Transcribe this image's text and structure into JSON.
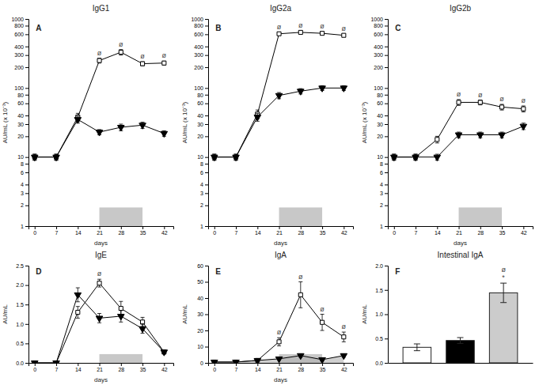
{
  "chart_data": [
    {
      "type": "line",
      "title": "IgG1",
      "label": "A",
      "xlabel": "days",
      "ylabel": "AU/mL (x 10⁻³)",
      "log": "y",
      "x": [
        0,
        7,
        14,
        21,
        28,
        35,
        42
      ],
      "xlim": [
        -2,
        45
      ],
      "xticks": [
        0,
        7,
        14,
        21,
        28,
        35,
        42
      ],
      "ylim": [
        1,
        1000
      ],
      "yticks": [
        1,
        2,
        3,
        4,
        6,
        8,
        10,
        20,
        30,
        40,
        60,
        80,
        100,
        200,
        300,
        400,
        600,
        800,
        1000
      ],
      "band": [
        21,
        35
      ],
      "series": [
        {
          "color": "black",
          "marker": "square-open",
          "values": [
            10,
            10,
            38,
            250,
            330,
            225,
            230
          ],
          "errors": [
            1,
            1,
            5,
            20,
            30,
            15,
            15
          ]
        },
        {
          "color": "black",
          "marker": "triangle-down",
          "values": [
            10,
            10,
            35,
            23,
            27,
            29,
            22
          ],
          "errors": [
            1,
            1,
            4,
            2,
            3,
            3,
            2
          ]
        }
      ],
      "annotations": [
        {
          "text": "ø",
          "x": 21
        },
        {
          "text": "ø",
          "x": 28
        },
        {
          "text": "ø",
          "x": 35
        },
        {
          "text": "ø",
          "x": 42
        }
      ]
    },
    {
      "type": "line",
      "title": "IgG2a",
      "label": "B",
      "xlabel": "days",
      "ylabel": "AU/mL (x 10⁻³)",
      "log": "y",
      "x": [
        0,
        7,
        14,
        21,
        28,
        35,
        42
      ],
      "xlim": [
        -2,
        45
      ],
      "xticks": [
        0,
        7,
        14,
        21,
        28,
        35,
        42
      ],
      "ylim": [
        1,
        1000
      ],
      "yticks": [
        1,
        2,
        3,
        4,
        6,
        8,
        10,
        20,
        30,
        40,
        60,
        80,
        100,
        200,
        300,
        400,
        600,
        800,
        1000
      ],
      "band": [
        21,
        35
      ],
      "series": [
        {
          "color": "black",
          "marker": "square-open",
          "values": [
            10,
            10,
            42,
            610,
            640,
            620,
            580
          ],
          "errors": [
            1,
            1,
            6,
            30,
            30,
            30,
            30
          ]
        },
        {
          "color": "black",
          "marker": "triangle-down",
          "values": [
            10,
            10,
            38,
            78,
            90,
            100,
            100
          ],
          "errors": [
            1,
            1,
            5,
            8,
            8,
            8,
            8
          ]
        }
      ],
      "annotations": [
        {
          "text": "ø",
          "x": 21
        },
        {
          "text": "ø",
          "x": 28
        },
        {
          "text": "ø",
          "x": 35
        },
        {
          "text": "ø",
          "x": 42
        }
      ]
    },
    {
      "type": "line",
      "title": "IgG2b",
      "label": "C",
      "xlabel": "days",
      "ylabel": "AU/mL (x 10⁻³)",
      "log": "y",
      "x": [
        0,
        7,
        14,
        21,
        28,
        35,
        42
      ],
      "xlim": [
        -2,
        45
      ],
      "xticks": [
        0,
        7,
        14,
        21,
        28,
        35,
        42
      ],
      "ylim": [
        1,
        1000
      ],
      "yticks": [
        1,
        2,
        3,
        4,
        6,
        8,
        10,
        20,
        30,
        40,
        60,
        80,
        100,
        200,
        300,
        400,
        600,
        800,
        1000
      ],
      "band": [
        21,
        35
      ],
      "series": [
        {
          "color": "black",
          "marker": "square-open",
          "values": [
            10,
            10,
            18,
            62,
            62,
            53,
            50
          ],
          "errors": [
            1,
            1,
            2,
            6,
            5,
            5,
            5
          ]
        },
        {
          "color": "black",
          "marker": "triangle-down",
          "values": [
            10,
            10,
            10,
            21,
            21,
            21,
            28
          ],
          "errors": [
            1,
            1,
            1,
            2,
            2,
            2,
            3
          ]
        }
      ],
      "annotations": [
        {
          "text": "ø",
          "x": 21
        },
        {
          "text": "ø",
          "x": 28
        },
        {
          "text": "ø",
          "x": 35
        },
        {
          "text": "ø",
          "x": 42
        }
      ]
    },
    {
      "type": "line",
      "title": "IgE",
      "label": "D",
      "xlabel": "days",
      "ylabel": "AU/mL",
      "x": [
        0,
        7,
        14,
        21,
        28,
        35,
        42
      ],
      "xlim": [
        -2,
        45
      ],
      "xticks": [
        0,
        7,
        14,
        21,
        28,
        35,
        42
      ],
      "ylim": [
        0,
        2.5
      ],
      "yticks": [
        {
          "value": 0,
          "label": "0.0"
        },
        0.5,
        {
          "value": 1,
          "label": "1.0"
        },
        1.5,
        {
          "value": 2,
          "label": "2.0"
        },
        2.5
      ],
      "band": [
        21,
        35
      ],
      "series": [
        {
          "color": "black",
          "marker": "square-open",
          "values": [
            0.0,
            0.0,
            1.3,
            2.05,
            1.4,
            1.05,
            0.28
          ],
          "errors": [
            0,
            0,
            0.15,
            0.1,
            0.18,
            0.12,
            0.05
          ]
        },
        {
          "color": "black",
          "marker": "triangle-down",
          "values": [
            0.0,
            0.0,
            1.75,
            1.15,
            1.2,
            0.88,
            0.28
          ],
          "errors": [
            0,
            0,
            0.18,
            0.12,
            0.15,
            0.12,
            0.04
          ]
        }
      ],
      "annotations": [
        {
          "text": "ø",
          "x": 21
        }
      ]
    },
    {
      "type": "line",
      "title": "IgA",
      "label": "E",
      "xlabel": "days",
      "ylabel": "AU/mL",
      "x": [
        0,
        7,
        14,
        21,
        28,
        35,
        42
      ],
      "xlim": [
        -2,
        45
      ],
      "xticks": [
        0,
        7,
        14,
        21,
        28,
        35,
        42
      ],
      "ylim": [
        0,
        60
      ],
      "yticks": [
        0,
        10,
        20,
        30,
        40,
        50,
        60
      ],
      "band": [
        21,
        35
      ],
      "series": [
        {
          "color": "black",
          "marker": "square-open",
          "values": [
            0.5,
            0.5,
            1.5,
            13.0,
            42.0,
            25.0,
            16.0
          ],
          "errors": [
            0.3,
            0.3,
            0.5,
            2.5,
            8.0,
            5.0,
            3.0
          ]
        },
        {
          "type": "area",
          "color": "black",
          "marker": "triangle-down",
          "values": [
            0.5,
            0.5,
            1.5,
            2.5,
            4.5,
            2.0,
            4.5
          ],
          "errors": [
            0.3,
            0.3,
            0.5,
            0.8,
            1.0,
            0.8,
            1.0
          ]
        }
      ],
      "annotations": [
        {
          "text": "ø",
          "x": 21
        },
        {
          "text": "ø",
          "x": 28
        },
        {
          "text": "ø",
          "x": 35
        },
        {
          "text": "ø",
          "x": 42
        }
      ]
    },
    {
      "type": "bar",
      "title": "Intestinal IgA",
      "label": "F",
      "ylabel": "AU/mL",
      "categories": [
        null,
        null,
        null
      ],
      "values": [
        0.32,
        0.46,
        1.44
      ],
      "errors": [
        0.07,
        0.06,
        0.2
      ],
      "colors": [
        "white",
        "black",
        "#cccccc"
      ],
      "ylim": [
        0,
        2.0
      ],
      "yticks": [
        {
          "value": 0,
          "label": "0.0"
        },
        0.5,
        {
          "value": 1,
          "label": "1.0"
        },
        1.5,
        {
          "value": 2,
          "label": "2.0"
        }
      ],
      "tick_labels": "y",
      "annotations": [
        {
          "text": "*",
          "x": 2
        },
        {
          "text": "ø",
          "x": 2
        }
      ]
    }
  ]
}
